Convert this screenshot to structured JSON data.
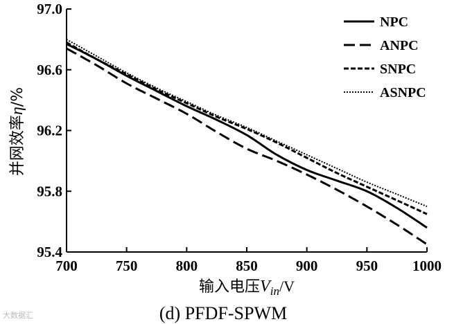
{
  "chart_data": {
    "type": "line",
    "title": "",
    "caption": "(d) PFDF-SPWM",
    "xlabel": "输入电压",
    "xlabel_var": "V",
    "xlabel_sub": "in",
    "xlabel_unit": "/V",
    "ylabel": "并网效率",
    "ylabel_var": "η",
    "ylabel_unit": "/%",
    "xlim": [
      700,
      1000
    ],
    "ylim": [
      95.4,
      97.0
    ],
    "xticks": [
      "700",
      "750",
      "800",
      "850",
      "900",
      "950",
      "1000"
    ],
    "yticks": [
      "95.4",
      "95.8",
      "96.2",
      "96.6",
      "97.0"
    ],
    "legend_position": "top-right",
    "series": [
      {
        "name": "NPC",
        "style": "solid",
        "x": [
          700,
          725,
          750,
          775,
          800,
          825,
          850,
          875,
          900,
          925,
          950,
          975,
          1000
        ],
        "y": [
          96.77,
          96.67,
          96.56,
          96.46,
          96.36,
          96.27,
          96.17,
          96.04,
          95.94,
          95.87,
          95.8,
          95.69,
          95.56
        ]
      },
      {
        "name": "ANPC",
        "style": "long-dash",
        "x": [
          700,
          725,
          750,
          775,
          800,
          825,
          850,
          875,
          900,
          925,
          950,
          975,
          1000
        ],
        "y": [
          96.74,
          96.63,
          96.51,
          96.41,
          96.31,
          96.19,
          96.08,
          96.0,
          95.91,
          95.81,
          95.7,
          95.58,
          95.45
        ]
      },
      {
        "name": "SNPC",
        "style": "short-dash",
        "x": [
          700,
          725,
          750,
          775,
          800,
          825,
          850,
          875,
          900,
          925,
          950,
          975,
          1000
        ],
        "y": [
          96.78,
          96.67,
          96.57,
          96.47,
          96.38,
          96.29,
          96.21,
          96.12,
          96.02,
          95.92,
          95.83,
          95.74,
          95.65
        ]
      },
      {
        "name": "ASNPC",
        "style": "dotted",
        "x": [
          700,
          725,
          750,
          775,
          800,
          825,
          850,
          875,
          900,
          925,
          950,
          975,
          1000
        ],
        "y": [
          96.8,
          96.69,
          96.58,
          96.48,
          96.39,
          96.3,
          96.22,
          96.13,
          96.04,
          95.95,
          95.86,
          95.78,
          95.7
        ]
      }
    ]
  },
  "watermark": "大数据汇"
}
